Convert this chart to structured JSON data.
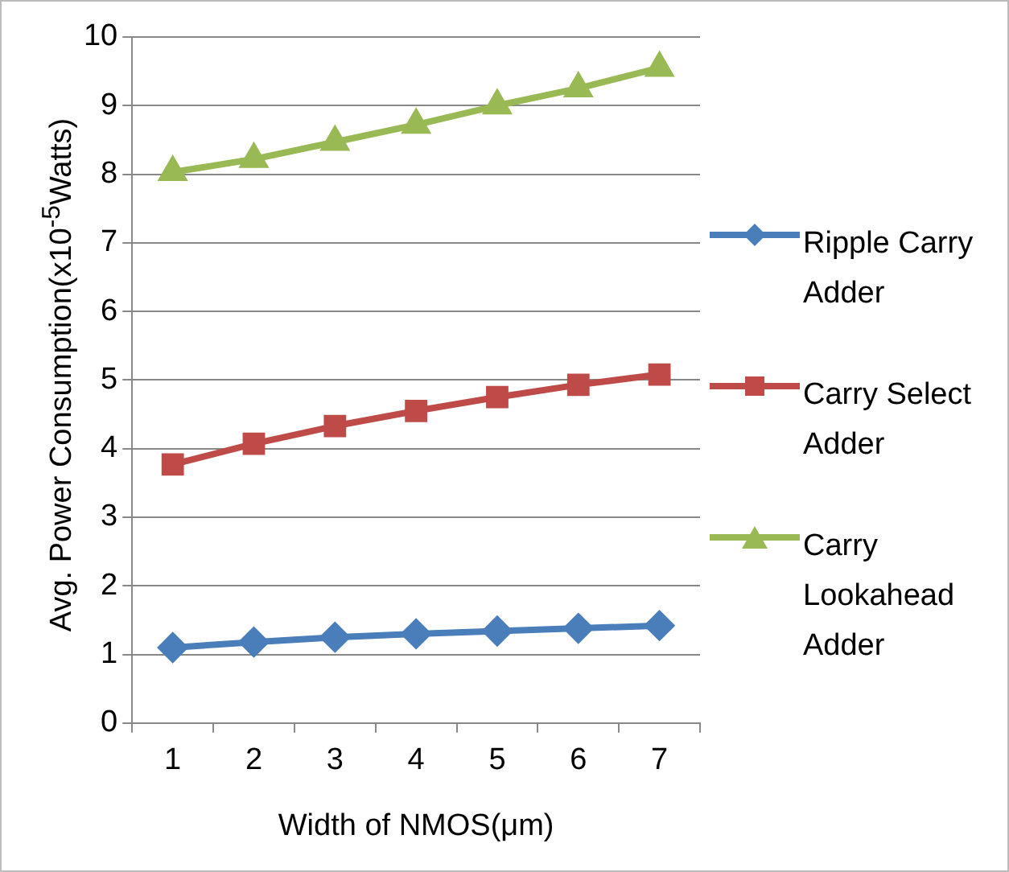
{
  "chart_data": {
    "type": "line",
    "xlabel": "Width of NMOS(μm)",
    "ylabel": "Avg. Power Consumption(x10$^{-5}$Watts)",
    "categories": [
      "1",
      "2",
      "3",
      "4",
      "5",
      "6",
      "7"
    ],
    "ylim": [
      0,
      10
    ],
    "yticks": [
      0,
      1,
      2,
      3,
      4,
      5,
      6,
      7,
      8,
      9,
      10
    ],
    "grid": "y",
    "legend": "right",
    "series": [
      {
        "name": "Ripple Carry Adder",
        "color": "#4a7ebb",
        "marker": "diamond",
        "values": [
          1.1,
          1.18,
          1.25,
          1.3,
          1.34,
          1.38,
          1.42
        ]
      },
      {
        "name": "Carry Select Adder",
        "color": "#be4b48",
        "marker": "square",
        "values": [
          3.77,
          4.07,
          4.33,
          4.55,
          4.75,
          4.93,
          5.08
        ]
      },
      {
        "name": "Carry Lookahead Adder",
        "color": "#98b954",
        "marker": "triangle",
        "values": [
          8.03,
          8.22,
          8.47,
          8.72,
          9.0,
          9.25,
          9.55
        ]
      }
    ]
  }
}
